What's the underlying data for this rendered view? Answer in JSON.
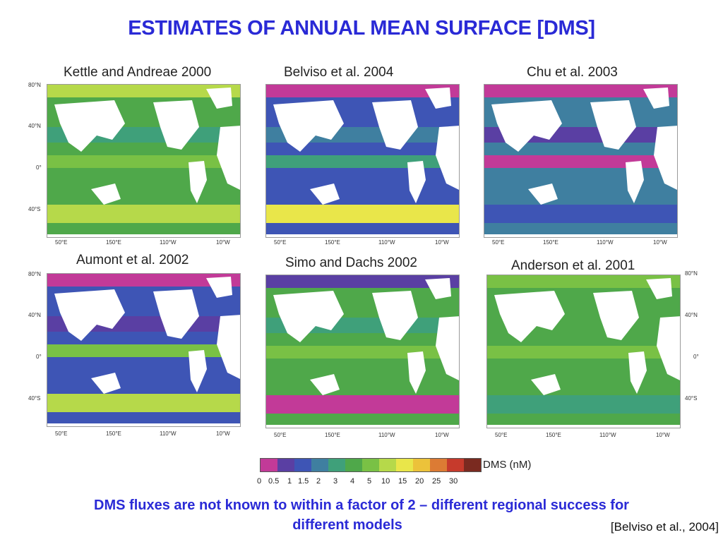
{
  "title": "ESTIMATES OF ANNUAL MEAN SURFACE [DMS]",
  "panels": [
    {
      "title": "Kettle and Andreae 2000",
      "scheme": "kettle"
    },
    {
      "title": "Belviso et al. 2004",
      "scheme": "belviso"
    },
    {
      "title": "Chu et al. 2003",
      "scheme": "chu"
    },
    {
      "title": "Aumont et al. 2002",
      "scheme": "aumont"
    },
    {
      "title": "Simo and Dachs 2002",
      "scheme": "simo"
    },
    {
      "title": "Anderson et al. 2001",
      "scheme": "anderson"
    }
  ],
  "lat_ticks": [
    "80°N",
    "40°N",
    "0°",
    "40°S"
  ],
  "lon_ticks": [
    "50°E",
    "150°E",
    "110°W",
    "10°W"
  ],
  "legend": {
    "title": "DMS (nM)",
    "ticks": [
      "0",
      "0.5",
      "1",
      "1.5",
      "2",
      "3",
      "4",
      "5",
      "10",
      "15",
      "20",
      "25",
      "30"
    ],
    "colors": [
      "#c23a98",
      "#5a3fa3",
      "#3e55b5",
      "#3f7fa0",
      "#3fa07a",
      "#4fa84a",
      "#79c145",
      "#b6d94a",
      "#e9e64a",
      "#ecc23a",
      "#dc7b34",
      "#c63a2c",
      "#7a2a20"
    ]
  },
  "caption": {
    "line1": "DMS fluxes are not known to within a factor of 2 – different regional success for",
    "line2": "different models"
  },
  "citation": "[Belviso et al., 2004]"
}
